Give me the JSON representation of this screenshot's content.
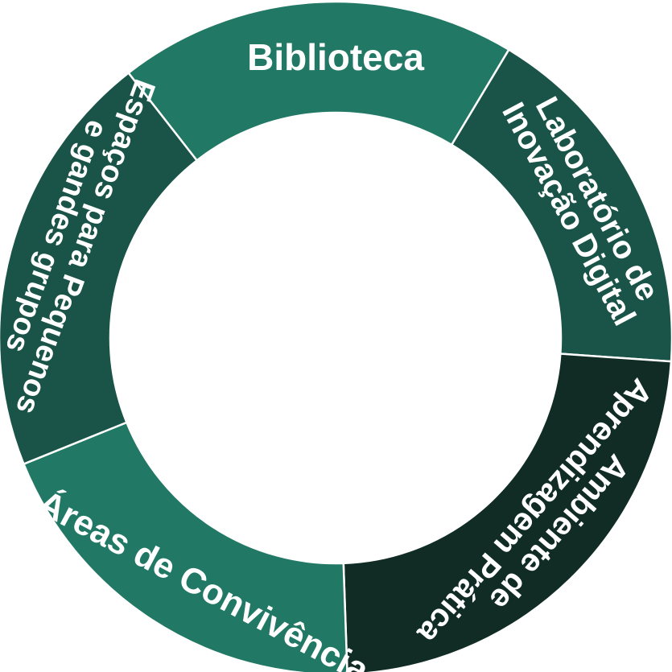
{
  "segments": [
    {
      "label": [
        "Biblioteca"
      ],
      "color": "#217865"
    },
    {
      "label": [
        "Laboratório de",
        "Inovação Digital"
      ],
      "color": "#1a5448"
    },
    {
      "label": [
        "Ambiente de",
        "Aprendizagem Prática"
      ],
      "color": "#102c24"
    },
    {
      "label": [
        "Áreas de Convivência"
      ],
      "color": "#217865"
    },
    {
      "label": [
        "Espaços para  Pequenos",
        "e gandes grupos"
      ],
      "color": "#1a5448"
    }
  ]
}
